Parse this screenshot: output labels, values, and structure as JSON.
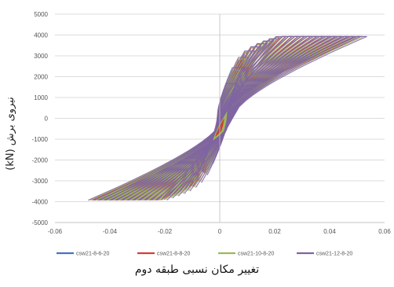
{
  "chart_data": {
    "type": "line",
    "xlabel": "تغییر مکان نسبی طبقه دوم",
    "ylabel": "نیروی برش (kN)",
    "xlim": [
      -0.06,
      0.06
    ],
    "ylim": [
      -5000,
      5000
    ],
    "x_ticks": [
      "-0.06",
      "-0.04",
      "-0.02",
      "0",
      "0.02",
      "0.04",
      "0.06"
    ],
    "x_tick_values": [
      -0.06,
      -0.04,
      -0.02,
      0,
      0.02,
      0.04,
      0.06
    ],
    "y_ticks": [
      "-5000",
      "-4000",
      "-3000",
      "-2000",
      "-1000",
      "0",
      "1000",
      "2000",
      "3000",
      "4000",
      "5000"
    ],
    "y_tick_values": [
      -5000,
      -4000,
      -3000,
      -2000,
      -1000,
      0,
      1000,
      2000,
      3000,
      4000,
      5000
    ],
    "grid": "horizontal",
    "legend_position": "bottom",
    "hysteresis": {
      "max_drift_left": -0.046,
      "max_drift_right": 0.05,
      "peak_shear": 3850,
      "cycles": 22
    },
    "series": [
      {
        "name": "csw21-8-6-20",
        "color": "#4472C4",
        "offset": 0.0
      },
      {
        "name": "csw21-8-8-20",
        "color": "#D0403A",
        "offset": 0.0008
      },
      {
        "name": "csw21-10-8-20",
        "color": "#9BBB59",
        "offset": 0.0016
      },
      {
        "name": "csw21-12-8-20",
        "color": "#8064A2",
        "offset": 0.0024
      }
    ]
  }
}
